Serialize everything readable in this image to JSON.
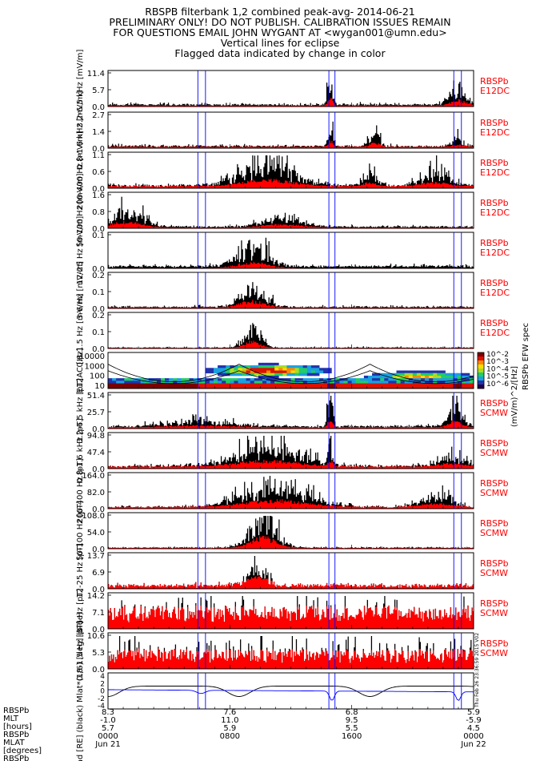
{
  "title_lines": [
    "RBSPB filterbank 1,2 combined peak-avg- 2014-06-21",
    "PRELIMINARY ONLY! DO NOT PUBLISH. CALIBRATION ISSUES REMAIN",
    "FOR QUESTIONS EMAIL JOHN WYGANT AT <wygan001@umn.edu>",
    "Vertical lines for eclipse",
    "Flagged data indicated by change in color"
  ],
  "colors": {
    "peak": "#000000",
    "avg": "#ff0000",
    "eclipse": "#0000ff",
    "label": "#ff0000"
  },
  "chart_data": {
    "type": "line",
    "x_axis": {
      "range": [
        "2014-06-21 00:00",
        "2014-06-22 00:00"
      ],
      "ticks": [
        "0000",
        "0800",
        "1600",
        "0000"
      ],
      "dates": [
        "Jun 21",
        "",
        "",
        "Jun 22"
      ]
    },
    "eclipse_hours": [
      5.9,
      6.4,
      14.5,
      14.9,
      22.7,
      23.2
    ],
    "panels": [
      {
        "name": "E12DC 3.2-6.5kHz",
        "ylabel": "3.2-6.5 kHz [mV/m]",
        "yticks": [
          "11.4",
          "5.7",
          "0.0"
        ],
        "ymax": 11.4,
        "base": 0.02,
        "noise": 0.02,
        "spikes": 0.35,
        "tag": [
          "RBSPb",
          "E12DC"
        ]
      },
      {
        "name": "E12DC 0.8-1.6kHz",
        "ylabel": "0.8-1.6 kHz [mV/m]",
        "yticks": [
          "2.7",
          "1.4",
          "0.0"
        ],
        "ymax": 2.7,
        "base": 0.03,
        "noise": 0.03,
        "spikes": 0.2,
        "tag": [
          "RBSPb",
          "E12DC"
        ]
      },
      {
        "name": "E12DC 200-400Hz",
        "ylabel": "200-400 Hz [mV/m]",
        "yticks": [
          "1.1",
          "0.6",
          "0.0"
        ],
        "ymax": 1.1,
        "base": 0.05,
        "noise": 0.06,
        "spikes": 0.5,
        "tag": [
          "RBSPb",
          "E12DC"
        ]
      },
      {
        "name": "E12DC 50-100Hz",
        "ylabel": "50-100 Hz [mV/m]",
        "yticks": [
          "1.6",
          "0.8",
          "0.0"
        ],
        "ymax": 1.6,
        "base": 0.02,
        "noise": 0.04,
        "spikes": 0.3,
        "tag": [
          "RBSPb",
          "E12DC"
        ]
      },
      {
        "name": "E12DC 12-25Hz",
        "ylabel": "12-25 Hz [mV/m]",
        "yticks": [
          "0.1",
          "0.0"
        ],
        "ymax": 0.12,
        "base": 0.0,
        "noise": 0.03,
        "spikes": 0.3,
        "tag": [
          "RBSPb",
          "E12DC"
        ]
      },
      {
        "name": "E12DC 3-6Hz",
        "ylabel": "3-6 Hz [mV/m]",
        "yticks": [
          "0.2",
          "0.1",
          "0.0"
        ],
        "ymax": 0.22,
        "base": 0.02,
        "noise": 0.0,
        "spikes": 0.2,
        "tag": [
          "RBSPb",
          "E12DC"
        ]
      },
      {
        "name": "E12DC 0.8-1.5Hz",
        "ylabel": "0.8-1.5 Hz [mV/m]",
        "yticks": [
          "0.2",
          "0.1",
          "0.0"
        ],
        "ymax": 0.22,
        "base": 0.02,
        "noise": 0.0,
        "spikes": 0.2,
        "tag": [
          "RBSPb",
          "E12DC"
        ]
      },
      {
        "name": "E12AC spec",
        "type": "heatmap",
        "ylabel": "E12AC [Hz]",
        "yticks": [
          "10000",
          "1000",
          "100",
          "10"
        ],
        "colorbar_ticks": [
          "10^-2",
          "10^-3",
          "10^-4",
          "10^-5",
          "10^-6"
        ],
        "colorbar_label": "(mV/m)^2/[Hz]",
        "colorbar_title": "RBSPb EFW spec"
      },
      {
        "name": "SCMW 3.2-6.5kHz",
        "ylabel": "3.2-6.5 kHz [pT]",
        "yticks": [
          "51.4",
          "25.7",
          "0.0"
        ],
        "ymax": 51.4,
        "base": 0.03,
        "noise": 0.04,
        "spikes": 0.4,
        "tag": [
          "RBSPb",
          "SCMW"
        ]
      },
      {
        "name": "SCMW 0.8-1.6kHz",
        "ylabel": "0.8-1.6 kHz [pT]",
        "yticks": [
          "94.8",
          "47.4",
          "0.0"
        ],
        "ymax": 94.8,
        "base": 0.05,
        "noise": 0.05,
        "spikes": 0.5,
        "tag": [
          "RBSPb",
          "SCMW"
        ]
      },
      {
        "name": "SCMW 200-400Hz",
        "ylabel": "200-400 Hz [pT]",
        "yticks": [
          "164.0",
          "82.0",
          "0.0"
        ],
        "ymax": 164.0,
        "base": 0.05,
        "noise": 0.05,
        "spikes": 0.5,
        "tag": [
          "RBSPb",
          "SCMW"
        ]
      },
      {
        "name": "SCMW 50-100Hz",
        "ylabel": "50-100 Hz [pT]",
        "yticks": [
          "108.0",
          "54.0",
          "0.0"
        ],
        "ymax": 108.0,
        "base": 0.03,
        "noise": 0.03,
        "spikes": 0.3,
        "tag": [
          "RBSPb",
          "SCMW"
        ]
      },
      {
        "name": "SCMW 12-25Hz",
        "ylabel": "12-25 Hz [pT]",
        "yticks": [
          "13.7",
          "6.9",
          "0.0"
        ],
        "ymax": 13.7,
        "base": 0.2,
        "noise": 0.1,
        "spikes": 0.3,
        "tag": [
          "RBSPb",
          "SCMW"
        ]
      },
      {
        "name": "SCMW 3-6Hz",
        "ylabel": "3-6 Hz [pT]",
        "yticks": [
          "14.2",
          "7.1",
          "0.0"
        ],
        "ymax": 14.2,
        "base": 0.55,
        "noise": 0.15,
        "spikes": 0.3,
        "tag": [
          "RBSPb",
          "SCMW"
        ]
      },
      {
        "name": "SCMW 0.8-1.5Hz",
        "ylabel": "0.8-1.5 Hz [pT]",
        "yticks": [
          "10.6",
          "5.3",
          "0.0"
        ],
        "ymax": 10.6,
        "base": 0.45,
        "noise": 0.0,
        "spikes": 0.5,
        "tag": [
          "RBSPb",
          "SCMW"
        ]
      },
      {
        "name": "Orbit",
        "type": "line",
        "ylabel": "Rad [RE] (black) Mlat*(1/6) [deg] (blue)",
        "yticks": [
          "4",
          "2",
          "0",
          "-2",
          "-4"
        ],
        "right_label": "Thu Feb 26 23:36:59 2015 V02"
      }
    ],
    "ephemeris": {
      "labels": [
        "RBSPb",
        "MLT",
        "[hours]",
        "RBSPb",
        "MLAT",
        "[degrees]",
        "RBSPb"
      ],
      "columns": [
        [
          "8.3",
          "-1.0",
          "5.7",
          "0000",
          "Jun 21"
        ],
        [
          "7.6",
          "11.0",
          "5.9",
          "0800",
          ""
        ],
        [
          "6.8",
          "9.5",
          "5.5",
          "1600",
          ""
        ],
        [
          "5.9",
          "-5.9",
          "4.5",
          "0000",
          "Jun 22"
        ]
      ]
    }
  }
}
